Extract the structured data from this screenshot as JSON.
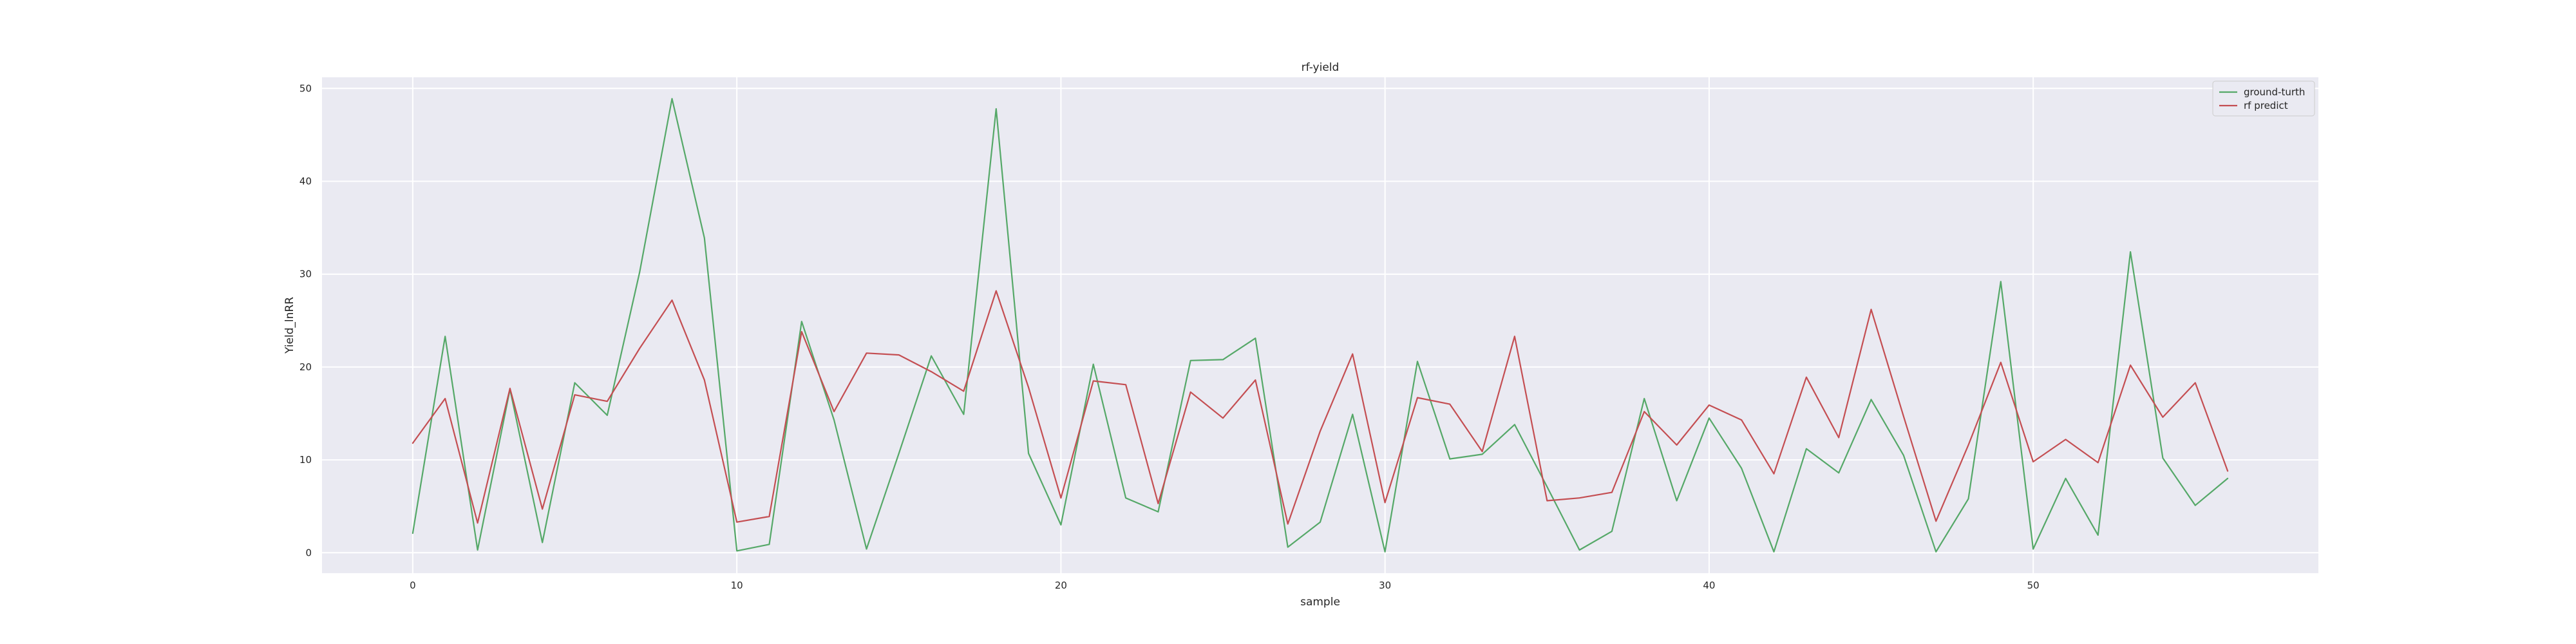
{
  "chart_data": {
    "type": "line",
    "title": "rf-yield",
    "xlabel": "sample",
    "ylabel": "Yield_lnRR",
    "xlim": [
      -2.8,
      58.8
    ],
    "ylim": [
      -2.2,
      51.2
    ],
    "xticks": [
      0,
      10,
      20,
      30,
      40,
      50
    ],
    "yticks": [
      0,
      10,
      20,
      30,
      40,
      50
    ],
    "grid": true,
    "legend_position": "top-right",
    "background": "#eaeaf2",
    "x": [
      0,
      1,
      2,
      3,
      4,
      5,
      6,
      7,
      8,
      9,
      10,
      11,
      12,
      13,
      14,
      15,
      16,
      17,
      18,
      19,
      20,
      21,
      22,
      23,
      24,
      25,
      26,
      27,
      28,
      29,
      30,
      31,
      32,
      33,
      34,
      35,
      36,
      37,
      38,
      39,
      40,
      41,
      42,
      43,
      44,
      45,
      46,
      47,
      48,
      49,
      50,
      51,
      52,
      53,
      54,
      55,
      56
    ],
    "series": [
      {
        "name": "ground-turth",
        "color": "#55a868",
        "values": [
          2.1,
          23.3,
          0.3,
          17.6,
          1.1,
          18.3,
          14.8,
          30.2,
          48.9,
          33.9,
          0.2,
          0.9,
          24.9,
          14.3,
          0.4,
          10.7,
          21.2,
          14.9,
          47.8,
          10.7,
          3.0,
          20.3,
          5.9,
          4.4,
          20.7,
          20.8,
          23.1,
          0.6,
          3.3,
          14.9,
          0.1,
          20.6,
          10.1,
          10.6,
          13.8,
          7.1,
          0.3,
          2.3,
          16.6,
          5.6,
          14.5,
          9.1,
          0.1,
          11.2,
          8.6,
          16.5,
          10.5,
          0.1,
          5.8,
          29.2,
          0.4,
          8.0,
          1.9,
          32.4,
          10.2,
          5.1,
          8.0
        ]
      },
      {
        "name": "rf predict",
        "color": "#c44e52",
        "values": [
          11.8,
          16.6,
          3.2,
          17.7,
          4.7,
          17.0,
          16.3,
          22.0,
          27.2,
          18.6,
          3.3,
          3.9,
          23.8,
          15.2,
          21.5,
          21.3,
          19.5,
          17.4,
          28.2,
          17.8,
          5.9,
          18.5,
          18.1,
          5.3,
          17.3,
          14.5,
          18.6,
          3.1,
          13.1,
          21.4,
          5.4,
          16.7,
          16.0,
          10.9,
          23.3,
          5.6,
          5.9,
          6.5,
          15.2,
          11.6,
          15.9,
          14.3,
          8.5,
          18.9,
          12.4,
          26.2,
          14.7,
          3.4,
          11.6,
          20.5,
          9.8,
          12.2,
          9.7,
          20.2,
          14.6,
          18.3,
          8.8
        ]
      }
    ]
  }
}
